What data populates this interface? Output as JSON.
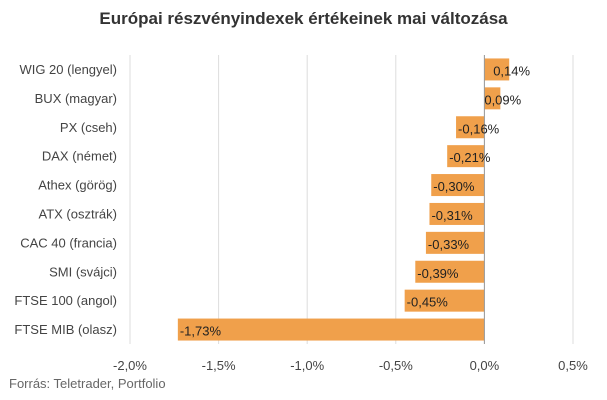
{
  "chart_data": {
    "type": "bar",
    "orientation": "horizontal",
    "title": "Európai részvényindexek értékeinek mai változása",
    "source": "Forrás: Teletrader, Portfolio",
    "categories": [
      "WIG 20 (lengyel)",
      "BUX (magyar)",
      "PX (cseh)",
      "DAX (német)",
      "Athex (görög)",
      "ATX (osztrák)",
      "CAC 40 (francia)",
      "SMI (svájci)",
      "FTSE 100 (angol)",
      "FTSE MIB (olasz)"
    ],
    "values": [
      0.14,
      0.09,
      -0.16,
      -0.21,
      -0.3,
      -0.31,
      -0.33,
      -0.39,
      -0.45,
      -1.73
    ],
    "data_labels": [
      "0,14%",
      "0,09%",
      "-0,16%",
      "-0,21%",
      "-0,30%",
      "-0,31%",
      "-0,33%",
      "-0,39%",
      "-0,45%",
      "-1,73%"
    ],
    "x_ticks": [
      -2.0,
      -1.5,
      -1.0,
      -0.5,
      0.0,
      0.5
    ],
    "x_tick_labels": [
      "-2,0%",
      "-1,5%",
      "-1,0%",
      "-0,5%",
      "0,0%",
      "0,5%"
    ],
    "xlim": [
      -2.0,
      0.5
    ],
    "grid": true,
    "bar_color": "#f0a04b",
    "grid_color": "#dddddd"
  }
}
